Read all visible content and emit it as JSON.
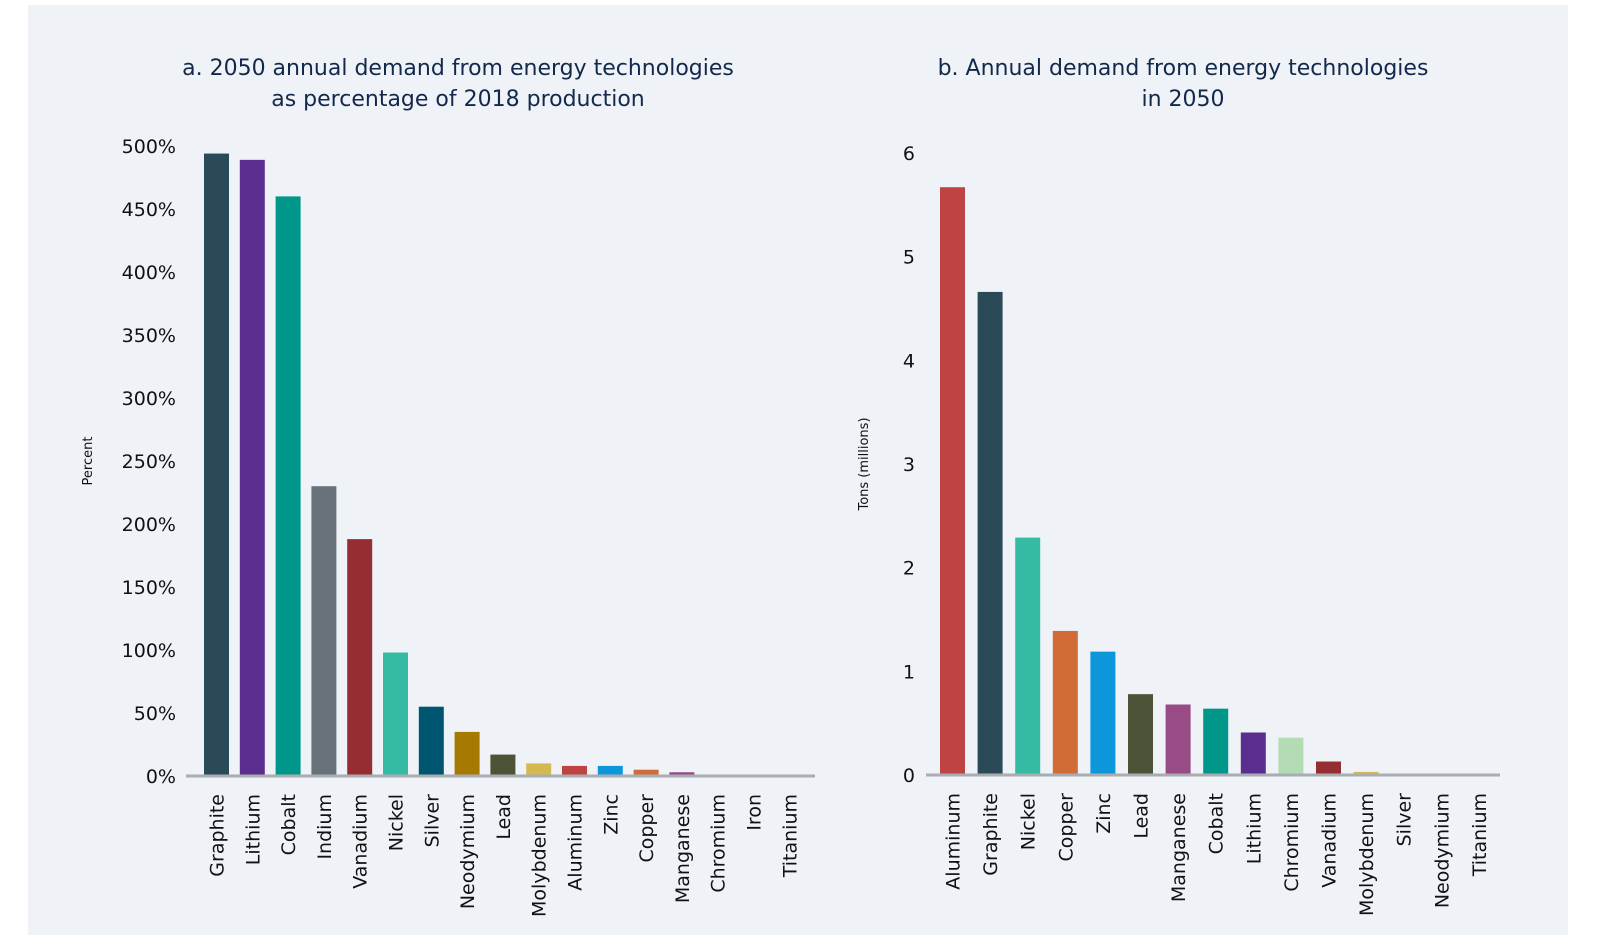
{
  "chart_data": [
    {
      "type": "bar",
      "title": [
        "a. 2050 annual demand from energy technologies",
        "as percentage of 2018 production"
      ],
      "xlabel": "",
      "ylabel": "Percent",
      "ylim": [
        0,
        500
      ],
      "yticks": [
        0,
        50,
        100,
        150,
        200,
        250,
        300,
        350,
        400,
        450,
        500
      ],
      "ytick_labels": [
        "0%",
        "50%",
        "100%",
        "150%",
        "200%",
        "250%",
        "300%",
        "350%",
        "400%",
        "450%",
        "500%"
      ],
      "categories": [
        "Graphite",
        "Lithium",
        "Cobalt",
        "Indium",
        "Vanadium",
        "Nickel",
        "Silver",
        "Neodymium",
        "Lead",
        "Molybdenum",
        "Aluminum",
        "Zinc",
        "Copper",
        "Manganese",
        "Chromium",
        "Iron",
        "Titanium"
      ],
      "values": [
        494,
        489,
        460,
        230,
        188,
        98,
        55,
        35,
        17,
        10,
        8,
        8,
        5,
        3,
        1,
        1,
        1
      ],
      "colors": [
        "#2b4a57",
        "#5b2d8e",
        "#00968a",
        "#67727a",
        "#952d33",
        "#35bba3",
        "#005670",
        "#a67a00",
        "#4d5336",
        "#d3b950",
        "#c04344",
        "#0c97db",
        "#d16c36",
        "#984b84",
        "#3f78b1",
        "#3f78b1",
        "#6d7487"
      ],
      "grid": false
    },
    {
      "type": "bar",
      "title": [
        "b. Annual demand from energy technologies",
        "in 2050"
      ],
      "xlabel": "",
      "ylabel": "Tons (millions)",
      "ylim": [
        0,
        6
      ],
      "yticks": [
        0,
        1,
        2,
        3,
        4,
        5,
        6
      ],
      "ytick_labels": [
        "0",
        "1",
        "2",
        "3",
        "4",
        "5",
        "6"
      ],
      "categories": [
        "Aluminum",
        "Graphite",
        "Nickel",
        "Copper",
        "Zinc",
        "Lead",
        "Manganese",
        "Cobalt",
        "Lithium",
        "Chromium",
        "Vanadium",
        "Molybdenum",
        "Silver",
        "Neodymium",
        "Titanium"
      ],
      "values": [
        5.67,
        4.66,
        2.29,
        1.39,
        1.19,
        0.78,
        0.68,
        0.64,
        0.41,
        0.36,
        0.13,
        0.03,
        0.01,
        0.01,
        0.01
      ],
      "colors": [
        "#c04344",
        "#2b4a57",
        "#35bba3",
        "#d16c36",
        "#0c97db",
        "#4d5336",
        "#984b84",
        "#00968a",
        "#5b2d8e",
        "#b4dcb4",
        "#952d33",
        "#d3b950",
        "#005670",
        "#a67a00",
        "#6d7487"
      ],
      "grid": false
    }
  ]
}
